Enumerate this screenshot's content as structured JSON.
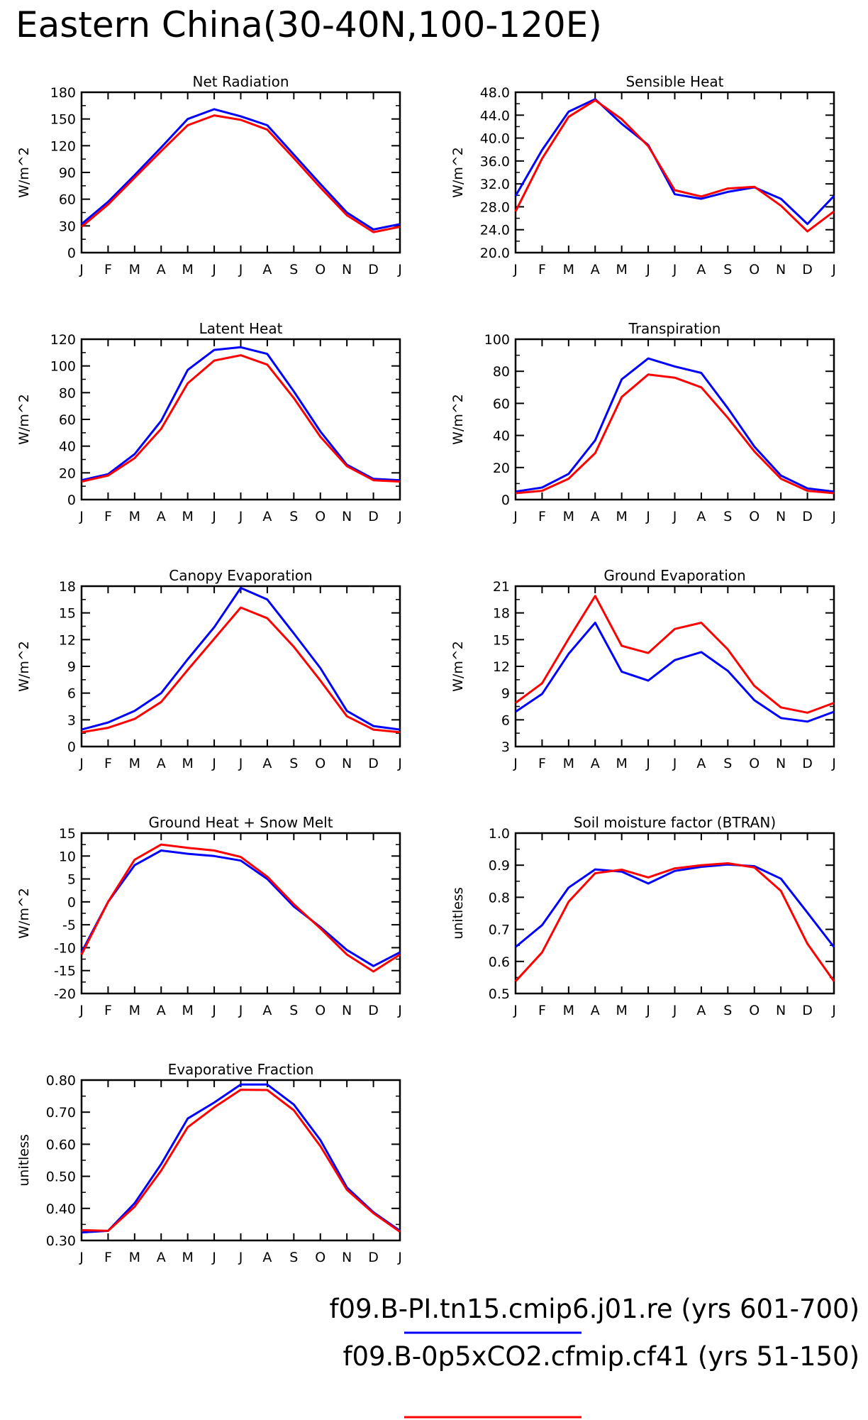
{
  "title": "Eastern China(30-40N,100-120E)",
  "months": [
    "J",
    "F",
    "M",
    "A",
    "M",
    "J",
    "J",
    "A",
    "S",
    "O",
    "N",
    "D",
    "J"
  ],
  "colors": {
    "blue": "#0000ff",
    "red": "#ff0000"
  },
  "legend": [
    {
      "label": "f09.B-PI.tn15.cmip6.j01.re (yrs 601-700)",
      "color": "#0000ff"
    },
    {
      "label": "f09.B-0p5xCO2.cfmip.cf41 (yrs 51-150)",
      "color": "#ff0000"
    }
  ],
  "chart_data": [
    {
      "type": "line",
      "title": "Net Radiation",
      "ylabel": "W/m^2",
      "ylim": [
        0,
        180
      ],
      "yticks": [
        "0",
        "30",
        "60",
        "90",
        "120",
        "150",
        "180"
      ],
      "series": [
        {
          "name": "f09.B-PI.tn15.cmip6.j01.re (yrs 601-700)",
          "color": "#0000ff",
          "values": [
            32,
            57,
            87,
            118,
            150,
            161,
            153,
            143,
            110,
            77,
            45,
            26,
            32
          ]
        },
        {
          "name": "f09.B-0p5xCO2.cfmip.cf41 (yrs 51-150)",
          "color": "#ff0000",
          "values": [
            29,
            54,
            84,
            114,
            143,
            154,
            149,
            138,
            106,
            73,
            42,
            23,
            29
          ]
        }
      ]
    },
    {
      "type": "line",
      "title": "Sensible Heat",
      "ylabel": "W/m^2",
      "ylim": [
        20,
        48
      ],
      "yticks": [
        "20.0",
        "24.0",
        "28.0",
        "32.0",
        "36.0",
        "40.0",
        "44.0",
        "48.0"
      ],
      "series": [
        {
          "name": "f09.B-PI.tn15.cmip6.j01.re (yrs 601-700)",
          "color": "#0000ff",
          "values": [
            29.9,
            37.9,
            44.6,
            46.8,
            42.5,
            38.8,
            30.2,
            29.4,
            30.6,
            31.4,
            29.4,
            25.0,
            29.9
          ]
        },
        {
          "name": "f09.B-0p5xCO2.cfmip.cf41 (yrs 51-150)",
          "color": "#ff0000",
          "values": [
            27.2,
            36.4,
            43.7,
            46.6,
            43.3,
            38.6,
            30.9,
            29.8,
            31.2,
            31.5,
            28.2,
            23.7,
            27.2
          ]
        }
      ]
    },
    {
      "type": "line",
      "title": "Latent Heat",
      "ylabel": "W/m^2",
      "ylim": [
        0,
        120
      ],
      "yticks": [
        "0",
        "20",
        "40",
        "60",
        "80",
        "100",
        "120"
      ],
      "series": [
        {
          "name": "f09.B-PI.tn15.cmip6.j01.re (yrs 601-700)",
          "color": "#0000ff",
          "values": [
            14.5,
            19,
            34,
            59,
            97,
            112,
            114,
            109,
            81,
            51,
            26,
            15.5,
            14.5
          ]
        },
        {
          "name": "f09.B-0p5xCO2.cfmip.cf41 (yrs 51-150)",
          "color": "#ff0000",
          "values": [
            13.5,
            18,
            31,
            53,
            87,
            104,
            108,
            101,
            76,
            47,
            25,
            14.5,
            13.5
          ]
        }
      ]
    },
    {
      "type": "line",
      "title": "Transpiration",
      "ylabel": "W/m^2",
      "ylim": [
        0,
        100
      ],
      "yticks": [
        "0",
        "20",
        "40",
        "60",
        "80",
        "100"
      ],
      "series": [
        {
          "name": "f09.B-PI.tn15.cmip6.j01.re (yrs 601-700)",
          "color": "#0000ff",
          "values": [
            5,
            7.5,
            16,
            37,
            75,
            88,
            83,
            79,
            57,
            33,
            15,
            7,
            5
          ]
        },
        {
          "name": "f09.B-0p5xCO2.cfmip.cf41 (yrs 51-150)",
          "color": "#ff0000",
          "values": [
            4,
            5.5,
            13,
            29,
            64,
            78,
            76,
            70,
            51,
            30,
            13,
            5.5,
            4
          ]
        }
      ]
    },
    {
      "type": "line",
      "title": "Canopy Evaporation",
      "ylabel": "W/m^2",
      "ylim": [
        0,
        18
      ],
      "yticks": [
        "0",
        "3",
        "6",
        "9",
        "12",
        "15",
        "18"
      ],
      "series": [
        {
          "name": "f09.B-PI.tn15.cmip6.j01.re (yrs 601-700)",
          "color": "#0000ff",
          "values": [
            1.9,
            2.7,
            4.0,
            6.0,
            9.8,
            13.4,
            17.8,
            16.5,
            12.7,
            8.8,
            4.0,
            2.3,
            1.9
          ]
        },
        {
          "name": "f09.B-0p5xCO2.cfmip.cf41 (yrs 51-150)",
          "color": "#ff0000",
          "values": [
            1.6,
            2.1,
            3.1,
            5.0,
            8.6,
            12.1,
            15.6,
            14.4,
            11.2,
            7.4,
            3.4,
            1.9,
            1.6
          ]
        }
      ]
    },
    {
      "type": "line",
      "title": "Ground Evaporation",
      "ylabel": "W/m^2",
      "ylim": [
        3,
        21
      ],
      "yticks": [
        "3",
        "6",
        "9",
        "12",
        "15",
        "18",
        "21"
      ],
      "series": [
        {
          "name": "f09.B-PI.tn15.cmip6.j01.re (yrs 601-700)",
          "color": "#0000ff",
          "values": [
            6.9,
            8.9,
            13.4,
            16.9,
            11.4,
            10.4,
            12.7,
            13.6,
            11.5,
            8.2,
            6.2,
            5.8,
            6.9
          ]
        },
        {
          "name": "f09.B-0p5xCO2.cfmip.cf41 (yrs 51-150)",
          "color": "#ff0000",
          "values": [
            7.9,
            10.1,
            15.1,
            19.9,
            14.3,
            13.5,
            16.2,
            16.9,
            13.9,
            9.8,
            7.4,
            6.8,
            7.9
          ]
        }
      ]
    },
    {
      "type": "line",
      "title": "Ground Heat + Snow Melt",
      "ylabel": "W/m^2",
      "ylim": [
        -20,
        15
      ],
      "yticks": [
        "-20",
        "-15",
        "-10",
        "-5",
        "0",
        "5",
        "10",
        "15"
      ],
      "series": [
        {
          "name": "f09.B-PI.tn15.cmip6.j01.re (yrs 601-700)",
          "color": "#0000ff",
          "values": [
            -11,
            0,
            8,
            11.2,
            10.5,
            10,
            9,
            5,
            -1,
            -5.5,
            -10.5,
            -14,
            -11
          ]
        },
        {
          "name": "f09.B-0p5xCO2.cfmip.cf41 (yrs 51-150)",
          "color": "#ff0000",
          "values": [
            -11.5,
            0,
            9.2,
            12.5,
            11.8,
            11.2,
            9.8,
            5.5,
            -0.5,
            -5.8,
            -11.5,
            -15.2,
            -11.5
          ]
        }
      ]
    },
    {
      "type": "line",
      "title": "Soil moisture factor (BTRAN)",
      "ylabel": "unitless",
      "ylim": [
        0.5,
        1.0
      ],
      "yticks": [
        "0.5",
        "0.6",
        "0.7",
        "0.8",
        "0.9",
        "1.0"
      ],
      "series": [
        {
          "name": "f09.B-PI.tn15.cmip6.j01.re (yrs 601-700)",
          "color": "#0000ff",
          "values": [
            0.645,
            0.713,
            0.83,
            0.887,
            0.88,
            0.843,
            0.882,
            0.895,
            0.902,
            0.897,
            0.858,
            0.752,
            0.645
          ]
        },
        {
          "name": "f09.B-0p5xCO2.cfmip.cf41 (yrs 51-150)",
          "color": "#ff0000",
          "values": [
            0.538,
            0.628,
            0.786,
            0.875,
            0.886,
            0.862,
            0.89,
            0.9,
            0.906,
            0.893,
            0.82,
            0.655,
            0.538
          ]
        }
      ]
    },
    {
      "type": "line",
      "title": "Evaporative Fraction",
      "ylabel": "unitless",
      "ylim": [
        0.3,
        0.8
      ],
      "yticks": [
        "0.30",
        "0.40",
        "0.50",
        "0.60",
        "0.70",
        "0.80"
      ],
      "series": [
        {
          "name": "f09.B-PI.tn15.cmip6.j01.re (yrs 601-700)",
          "color": "#0000ff",
          "values": [
            0.325,
            0.33,
            0.416,
            0.538,
            0.68,
            0.73,
            0.786,
            0.786,
            0.724,
            0.613,
            0.465,
            0.388,
            0.33
          ]
        },
        {
          "name": "f09.B-0p5xCO2.cfmip.cf41 (yrs 51-150)",
          "color": "#ff0000",
          "values": [
            0.332,
            0.33,
            0.405,
            0.518,
            0.653,
            0.715,
            0.77,
            0.769,
            0.706,
            0.594,
            0.458,
            0.385,
            0.327
          ]
        }
      ]
    }
  ]
}
